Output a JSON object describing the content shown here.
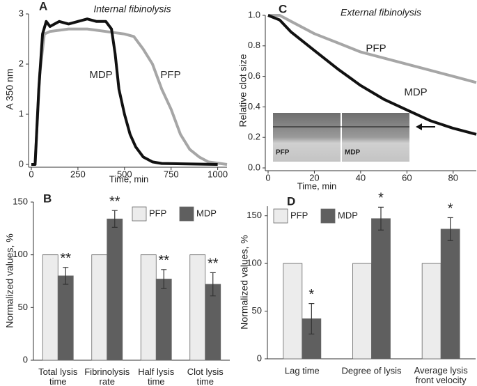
{
  "chart_data": [
    {
      "type": "line",
      "panel": "A",
      "title": "Internal fibinolysis",
      "xlabel": "Time, min",
      "ylabel": "A 350 nm",
      "xlim": [
        0,
        1050
      ],
      "xticks": [
        0,
        250,
        500,
        750,
        1000
      ],
      "ylim": [
        0,
        3
      ],
      "yticks": [
        0,
        1,
        2,
        3
      ],
      "series": [
        {
          "name": "PFP",
          "color": "#a6a6a6",
          "x": [
            0,
            20,
            45,
            70,
            100,
            200,
            300,
            400,
            500,
            550,
            600,
            650,
            700,
            750,
            800,
            850,
            900,
            950,
            1050
          ],
          "values": [
            0,
            0,
            1.8,
            2.6,
            2.65,
            2.7,
            2.7,
            2.65,
            2.6,
            2.55,
            2.3,
            2.0,
            1.5,
            1.1,
            0.6,
            0.3,
            0.15,
            0.05,
            0
          ]
        },
        {
          "name": "MDP",
          "color": "#111111",
          "x": [
            0,
            20,
            40,
            60,
            80,
            100,
            150,
            200,
            250,
            300,
            350,
            400,
            430,
            450,
            470,
            500,
            530,
            560,
            600,
            650,
            700,
            1000
          ],
          "values": [
            0,
            0,
            1.5,
            2.6,
            2.85,
            2.75,
            2.85,
            2.8,
            2.85,
            2.9,
            2.85,
            2.85,
            2.7,
            2.2,
            1.5,
            1.0,
            0.6,
            0.35,
            0.15,
            0.05,
            0.02,
            0
          ]
        }
      ]
    },
    {
      "type": "bar",
      "panel": "B",
      "ylabel": "Normalized values, %",
      "categories": [
        "Total lysis\ntime",
        "Fibrinolysis\nrate",
        "Half lysis\ntime",
        "Clot lysis\ntime"
      ],
      "ylim": [
        0,
        150
      ],
      "yticks": [
        0,
        50,
        100,
        150
      ],
      "series": [
        {
          "name": "PFP",
          "color": "#ececec",
          "values": [
            100,
            100,
            100,
            100
          ]
        },
        {
          "name": "MDP",
          "color": "#5f5f5f",
          "values": [
            80,
            134,
            77,
            72
          ],
          "errors": [
            8,
            8,
            9,
            11
          ],
          "significance": [
            "**",
            "**",
            "**",
            "**"
          ]
        }
      ]
    },
    {
      "type": "line",
      "panel": "C",
      "title": "External fibinolysis",
      "xlabel": "Time, min",
      "ylabel": "Relative clot size",
      "xlim": [
        0,
        90
      ],
      "xticks": [
        0,
        20,
        40,
        60,
        80
      ],
      "ylim": [
        0,
        1
      ],
      "yticks": [
        {
          "value": 0,
          "label": "0.0"
        },
        0.2,
        0.4,
        0.6,
        0.8,
        {
          "value": 1,
          "label": "1.0"
        }
      ],
      "inset_labels": [
        "PFP",
        "MDP"
      ],
      "series": [
        {
          "name": "PFP",
          "color": "#a6a6a6",
          "x": [
            0,
            5,
            10,
            20,
            30,
            40,
            50,
            60,
            70,
            80,
            90
          ],
          "values": [
            1,
            1,
            0.96,
            0.88,
            0.82,
            0.76,
            0.72,
            0.68,
            0.64,
            0.6,
            0.56
          ]
        },
        {
          "name": "MDP",
          "color": "#111111",
          "x": [
            0,
            5,
            10,
            20,
            30,
            40,
            50,
            60,
            70,
            80,
            90
          ],
          "values": [
            1,
            0.97,
            0.89,
            0.77,
            0.65,
            0.54,
            0.45,
            0.38,
            0.31,
            0.26,
            0.22
          ]
        }
      ]
    },
    {
      "type": "bar",
      "panel": "D",
      "ylabel": "Normalized values, %",
      "categories": [
        "Lag time",
        "Degree of lysis",
        "Average lysis\nfront velocity"
      ],
      "ylim": [
        0,
        160
      ],
      "yticks": [
        0,
        50,
        100,
        150
      ],
      "series": [
        {
          "name": "PFP",
          "color": "#ececec",
          "values": [
            100,
            100,
            100
          ]
        },
        {
          "name": "MDP",
          "color": "#5f5f5f",
          "values": [
            42,
            147,
            136
          ],
          "errors": [
            16,
            12,
            12
          ],
          "significance": [
            "*",
            "*",
            "*"
          ]
        }
      ]
    }
  ]
}
